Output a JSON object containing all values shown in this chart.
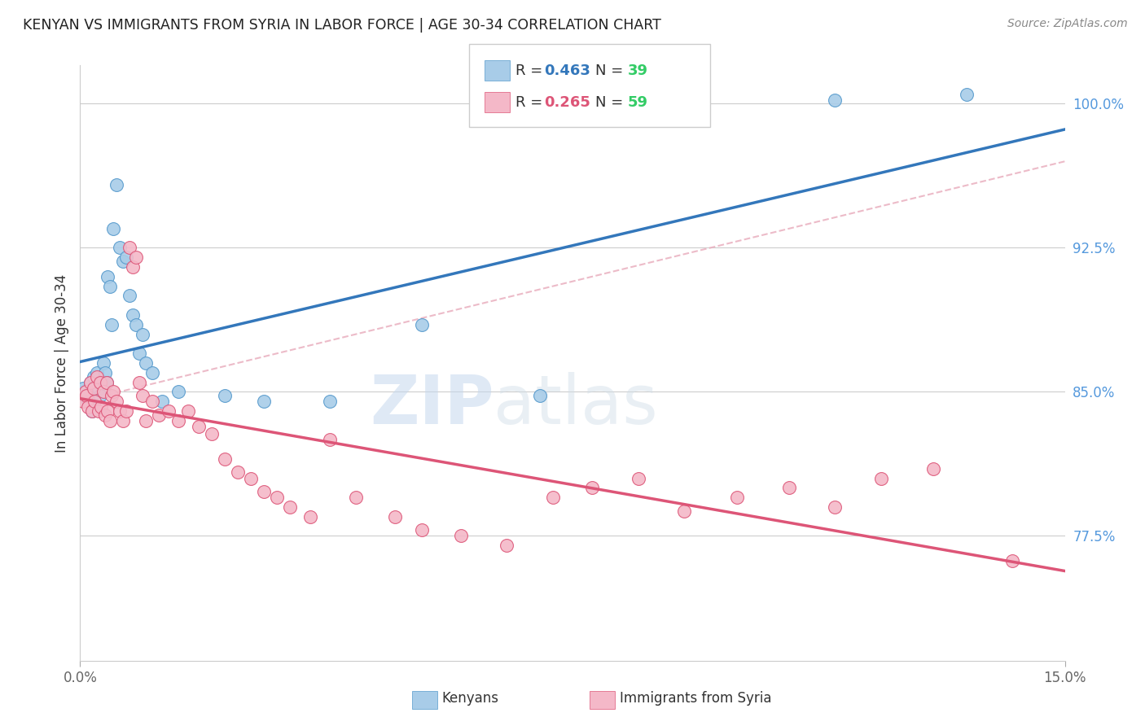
{
  "title": "KENYAN VS IMMIGRANTS FROM SYRIA IN LABOR FORCE | AGE 30-34 CORRELATION CHART",
  "source": "Source: ZipAtlas.com",
  "ylabel": "In Labor Force | Age 30-34",
  "xlim": [
    0.0,
    15.0
  ],
  "ylim": [
    71.0,
    102.0
  ],
  "y_ticks": [
    77.5,
    85.0,
    92.5,
    100.0
  ],
  "x_ticks": [
    0.0,
    15.0
  ],
  "label_kenyans": "Kenyans",
  "label_syria": "Immigrants from Syria",
  "color_blue": "#a8cce8",
  "color_pink": "#f4b8c8",
  "color_blue_dark": "#5599cc",
  "color_blue_line": "#3377bb",
  "color_pink_line": "#dd5577",
  "color_pink_dashed": "#e8aabb",
  "r_blue": "0.463",
  "n_blue": "39",
  "r_pink": "0.265",
  "n_pink": "59",
  "watermark_zip": "ZIP",
  "watermark_atlas": "atlas",
  "blue_x": [
    0.05,
    0.08,
    0.1,
    0.12,
    0.15,
    0.18,
    0.2,
    0.22,
    0.25,
    0.28,
    0.3,
    0.32,
    0.35,
    0.38,
    0.4,
    0.42,
    0.45,
    0.48,
    0.5,
    0.55,
    0.6,
    0.65,
    0.7,
    0.75,
    0.8,
    0.85,
    0.9,
    0.95,
    1.0,
    1.1,
    1.25,
    1.5,
    2.2,
    2.8,
    3.8,
    5.2,
    7.0,
    11.5,
    13.5
  ],
  "blue_y": [
    85.2,
    84.8,
    85.0,
    84.5,
    85.5,
    84.0,
    85.8,
    84.5,
    86.0,
    85.2,
    84.8,
    85.5,
    86.5,
    86.0,
    85.5,
    91.0,
    90.5,
    88.5,
    93.5,
    95.8,
    92.5,
    91.8,
    92.0,
    90.0,
    89.0,
    88.5,
    87.0,
    88.0,
    86.5,
    86.0,
    84.5,
    85.0,
    84.8,
    84.5,
    84.5,
    88.5,
    84.8,
    100.2,
    100.5
  ],
  "pink_x": [
    0.05,
    0.08,
    0.1,
    0.12,
    0.15,
    0.18,
    0.2,
    0.22,
    0.25,
    0.28,
    0.3,
    0.32,
    0.35,
    0.38,
    0.4,
    0.42,
    0.45,
    0.48,
    0.5,
    0.55,
    0.6,
    0.65,
    0.7,
    0.75,
    0.8,
    0.85,
    0.9,
    0.95,
    1.0,
    1.1,
    1.2,
    1.35,
    1.5,
    1.65,
    1.8,
    2.0,
    2.2,
    2.4,
    2.6,
    2.8,
    3.0,
    3.2,
    3.5,
    3.8,
    4.2,
    4.8,
    5.2,
    5.8,
    6.5,
    7.2,
    7.8,
    8.5,
    9.2,
    10.0,
    10.8,
    11.5,
    12.2,
    13.0,
    14.2
  ],
  "pink_y": [
    84.5,
    85.0,
    84.8,
    84.2,
    85.5,
    84.0,
    85.2,
    84.5,
    85.8,
    84.0,
    85.5,
    84.2,
    85.0,
    83.8,
    85.5,
    84.0,
    83.5,
    84.8,
    85.0,
    84.5,
    84.0,
    83.5,
    84.0,
    92.5,
    91.5,
    92.0,
    85.5,
    84.8,
    83.5,
    84.5,
    83.8,
    84.0,
    83.5,
    84.0,
    83.2,
    82.8,
    81.5,
    80.8,
    80.5,
    79.8,
    79.5,
    79.0,
    78.5,
    82.5,
    79.5,
    78.5,
    77.8,
    77.5,
    77.0,
    79.5,
    80.0,
    80.5,
    78.8,
    79.5,
    80.0,
    79.0,
    80.5,
    81.0,
    76.2
  ]
}
